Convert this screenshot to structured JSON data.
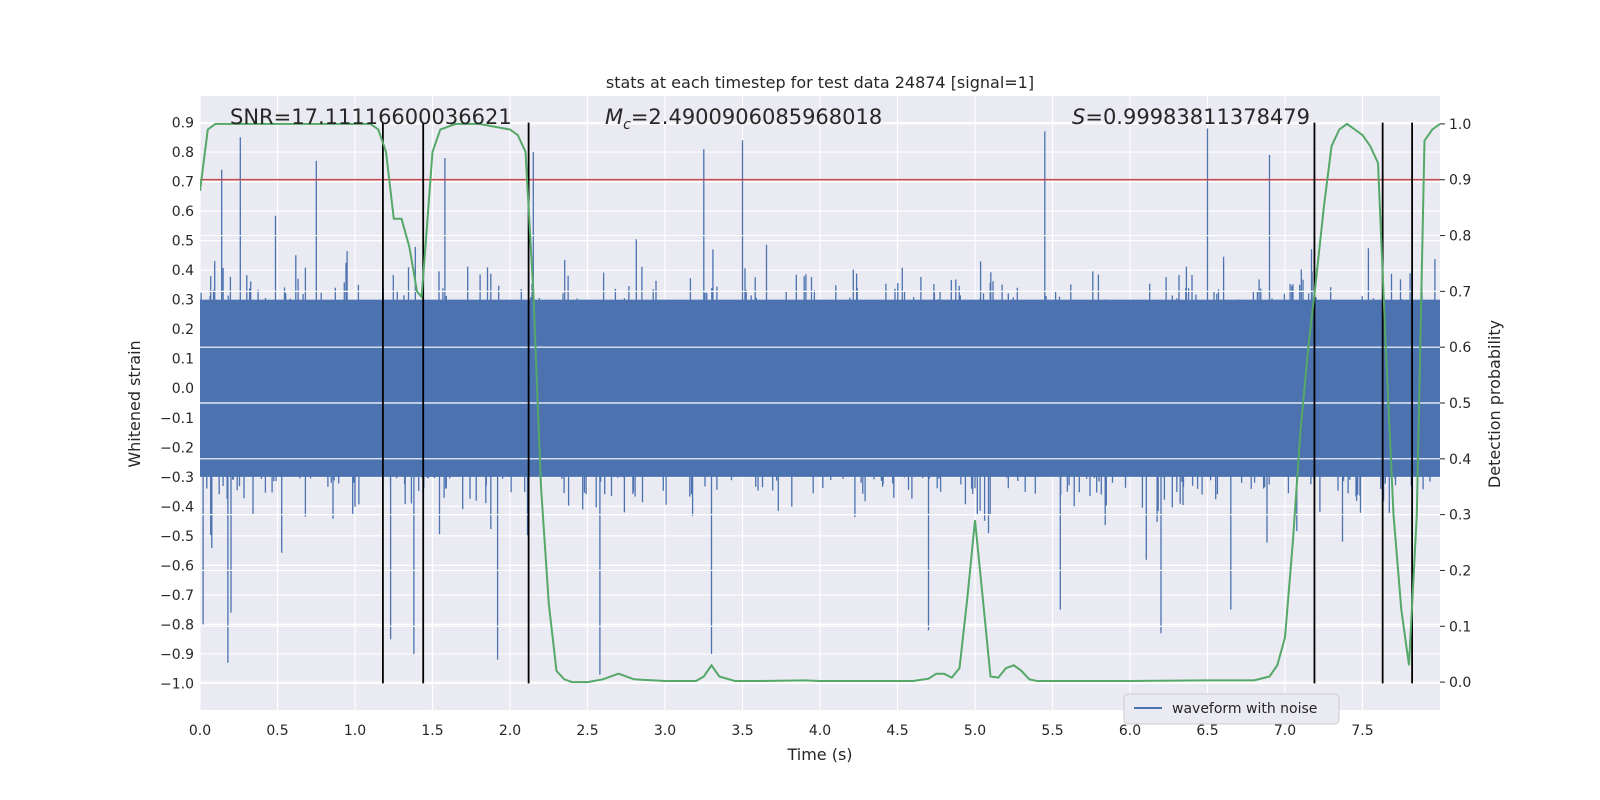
{
  "chart_data": {
    "type": "line",
    "title": "stats at each timestep for test data 24874 [signal=1]",
    "xlabel": "Time (s)",
    "ylabel_left": "Whitened strain",
    "ylabel_right": "Detection probability",
    "xlim": [
      0.0,
      8.0
    ],
    "ylim_left": [
      -1.09,
      0.99
    ],
    "ylim_right": [
      -0.05,
      1.05
    ],
    "x_ticks": [
      0.0,
      0.5,
      1.0,
      1.5,
      2.0,
      2.5,
      3.0,
      3.5,
      4.0,
      4.5,
      5.0,
      5.5,
      6.0,
      6.5,
      7.0,
      7.5
    ],
    "x_tick_labels": [
      "0.0",
      "0.5",
      "1.0",
      "1.5",
      "2.0",
      "2.5",
      "3.0",
      "3.5",
      "4.0",
      "4.5",
      "5.0",
      "5.5",
      "6.0",
      "6.5",
      "7.0",
      "7.5"
    ],
    "y_left_ticks": [
      -1.0,
      -0.9,
      -0.8,
      -0.7,
      -0.6,
      -0.5,
      -0.4,
      -0.3,
      -0.2,
      -0.1,
      0.0,
      0.1,
      0.2,
      0.3,
      0.4,
      0.5,
      0.6,
      0.7,
      0.8,
      0.9
    ],
    "y_left_tick_labels": [
      "−1.0",
      "−0.9",
      "−0.8",
      "−0.7",
      "−0.6",
      "−0.5",
      "−0.4",
      "−0.3",
      "−0.2",
      "−0.1",
      "0.0",
      "0.1",
      "0.2",
      "0.3",
      "0.4",
      "0.5",
      "0.6",
      "0.7",
      "0.8",
      "0.9"
    ],
    "y_right_ticks": [
      0.0,
      0.1,
      0.2,
      0.3,
      0.4,
      0.5,
      0.6,
      0.7,
      0.8,
      0.9,
      1.0
    ],
    "y_right_tick_labels": [
      "0.0",
      "0.1",
      "0.2",
      "0.3",
      "0.4",
      "0.5",
      "0.6",
      "0.7",
      "0.8",
      "0.9",
      "1.0"
    ],
    "annotations": {
      "snr": "SNR=17.11116600036621",
      "mc_symbol": "M",
      "mc_subscript": "c",
      "mc_value": "=2.4900906085968018",
      "s_symbol": "S",
      "s_value": "=0.99983811378479"
    },
    "threshold": {
      "axis": "right",
      "value": 0.9,
      "color": "#c44e52"
    },
    "vertical_lines": {
      "x": [
        1.18,
        1.44,
        2.12,
        7.19,
        7.63,
        7.82
      ],
      "y_range": [
        -1.0,
        0.9
      ],
      "color": "#000000"
    },
    "series": [
      {
        "name": "waveform with noise",
        "axis": "left",
        "color": "#4c72b0",
        "kind": "noise",
        "core_amplitude": 0.3,
        "typical_peak": [
          0.38,
          0.62
        ],
        "notable_peaks": [
          {
            "x": 0.14,
            "y": 0.74
          },
          {
            "x": 0.26,
            "y": 0.85
          },
          {
            "x": 0.75,
            "y": 0.77
          },
          {
            "x": 1.58,
            "y": 0.78
          },
          {
            "x": 2.15,
            "y": 0.8
          },
          {
            "x": 3.25,
            "y": 0.81
          },
          {
            "x": 3.5,
            "y": 0.84
          },
          {
            "x": 5.45,
            "y": 0.87
          },
          {
            "x": 6.5,
            "y": 0.88
          },
          {
            "x": 6.9,
            "y": 0.79
          }
        ],
        "notable_troughs": [
          {
            "x": 0.18,
            "y": -0.93
          },
          {
            "x": 0.2,
            "y": -0.76
          },
          {
            "x": 0.02,
            "y": -0.8
          },
          {
            "x": 1.23,
            "y": -0.85
          },
          {
            "x": 1.38,
            "y": -0.9
          },
          {
            "x": 1.92,
            "y": -0.92
          },
          {
            "x": 2.58,
            "y": -0.97
          },
          {
            "x": 3.3,
            "y": -0.9
          },
          {
            "x": 4.7,
            "y": -0.82
          },
          {
            "x": 5.55,
            "y": -0.75
          },
          {
            "x": 6.2,
            "y": -0.83
          },
          {
            "x": 6.65,
            "y": -0.75
          }
        ]
      },
      {
        "name": "detection probability",
        "axis": "right",
        "color": "#55a868",
        "x": [
          0.0,
          0.05,
          0.1,
          0.18,
          0.3,
          0.5,
          0.8,
          1.0,
          1.1,
          1.15,
          1.2,
          1.25,
          1.3,
          1.35,
          1.4,
          1.43,
          1.46,
          1.5,
          1.55,
          1.65,
          1.8,
          2.0,
          2.05,
          2.1,
          2.15,
          2.2,
          2.25,
          2.3,
          2.35,
          2.4,
          2.5,
          2.6,
          2.7,
          2.8,
          3.0,
          3.2,
          3.25,
          3.3,
          3.35,
          3.45,
          3.6,
          3.9,
          4.0,
          4.3,
          4.6,
          4.7,
          4.75,
          4.8,
          4.85,
          4.9,
          4.95,
          5.0,
          5.05,
          5.1,
          5.15,
          5.2,
          5.25,
          5.3,
          5.35,
          5.4,
          5.5,
          6.0,
          6.5,
          6.8,
          6.9,
          6.95,
          7.0,
          7.05,
          7.1,
          7.15,
          7.2,
          7.25,
          7.3,
          7.35,
          7.4,
          7.45,
          7.5,
          7.55,
          7.6,
          7.65,
          7.7,
          7.75,
          7.8,
          7.85,
          7.9,
          7.95,
          8.0
        ],
        "values": [
          0.88,
          0.99,
          1.0,
          1.0,
          1.0,
          1.0,
          1.0,
          1.0,
          1.0,
          0.99,
          0.95,
          0.83,
          0.83,
          0.78,
          0.7,
          0.69,
          0.8,
          0.95,
          0.99,
          1.0,
          1.0,
          0.99,
          0.98,
          0.95,
          0.7,
          0.35,
          0.14,
          0.02,
          0.005,
          0.0,
          0.0,
          0.005,
          0.015,
          0.005,
          0.002,
          0.002,
          0.01,
          0.03,
          0.01,
          0.002,
          0.002,
          0.003,
          0.002,
          0.002,
          0.002,
          0.006,
          0.015,
          0.015,
          0.008,
          0.025,
          0.15,
          0.29,
          0.15,
          0.01,
          0.008,
          0.025,
          0.03,
          0.02,
          0.005,
          0.002,
          0.002,
          0.002,
          0.003,
          0.003,
          0.01,
          0.03,
          0.08,
          0.25,
          0.45,
          0.6,
          0.72,
          0.85,
          0.96,
          0.99,
          1.0,
          0.99,
          0.98,
          0.96,
          0.93,
          0.6,
          0.3,
          0.13,
          0.03,
          0.3,
          0.97,
          0.99,
          1.0
        ]
      }
    ],
    "legend": {
      "location": "lower-right",
      "entries": [
        "waveform with noise"
      ]
    },
    "grid": true
  }
}
